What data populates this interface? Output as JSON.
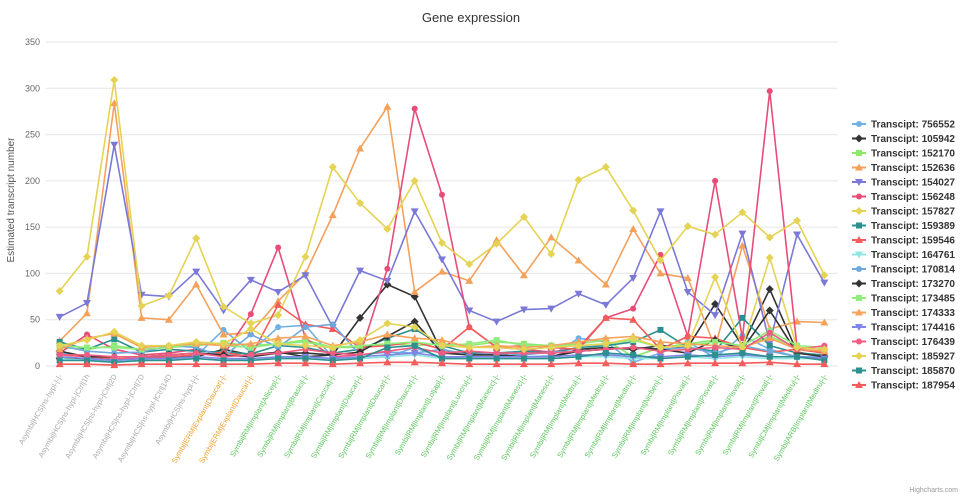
{
  "chart_data": {
    "type": "line",
    "title": "Gene expression",
    "ylabel": "Estimated transcript number",
    "xlabel": "",
    "ylim": [
      0,
      350
    ],
    "yticks": [
      0,
      50,
      100,
      150,
      200,
      250,
      300,
      350
    ],
    "grid": true,
    "legend_position": "right",
    "credit": "Highcharts.com",
    "categories": [
      "Asymbi|HCS|ns-hypl-|-|-",
      "Asymbi|HCS|ns-hypl-|Ctrl|1h",
      "Asymbi|HCS|ns-hypl-|Ctrl|2D",
      "Asymbi|HCS|ns-hypl-|Ctrl|7D",
      "Asymbi|HCS|ns-hypl-|Ctrl|14D",
      "Asymbi|HCS|ns-hypl-|-|-",
      "Symbi|ERM|Explant|Daucar|-|-",
      "Symbi|ERM|Explant|Daucar|-|-",
      "Symbi|RM|Implant|Allicep|-|-",
      "Symbi|RM|Implant|Brasici|-|-",
      "Symbi|RM|Implant|Caccat|-|-",
      "Symbi|RM|Implant|Daucar|-|-",
      "Symbi|RM|Implant|Daucar|-|-",
      "Symbi|RM|Implant|Daucar|-|-",
      "Symbi|RM|Implant|Lotjap|-|-",
      "Symbi|RM|Implant|Luncru|-|-",
      "Symbi|RM|Implant|Manesc|-|-",
      "Symbi|RM|Implant|Manesc|-|-",
      "Symbi|RM|Implant|Manesc|-|-",
      "Symbi|RM|Implant|Medtru|-|-",
      "Symbi|RM|Implant|Medtru|-|-",
      "Symbi|RM|Implant|Medtru|-|-",
      "Symbi|RM|Implant|Nicben|-|-",
      "Symbi|RM|Implant|Pisvat|-|-",
      "Symbi|RM|Implant|Pisvat|-|-",
      "Symbi|RM|Implant|Pisvat|-|-",
      "Symbi|RM|Implant|Pisvat|-|-",
      "Symbi|CM|Implant|Medtru|-|-",
      "Symbi|ARB|Implant|Medtru|-|-"
    ],
    "category_colors": [
      "#aaaaaa",
      "#aaaaaa",
      "#aaaaaa",
      "#aaaaaa",
      "#aaaaaa",
      "#aaaaaa",
      "#f0a030",
      "#f0a030",
      "#5cc85c",
      "#5cc85c",
      "#5cc85c",
      "#5cc85c",
      "#5cc85c",
      "#5cc85c",
      "#5cc85c",
      "#5cc85c",
      "#5cc85c",
      "#5cc85c",
      "#5cc85c",
      "#5cc85c",
      "#5cc85c",
      "#5cc85c",
      "#5cc85c",
      "#5cc85c",
      "#5cc85c",
      "#5cc85c",
      "#5cc85c",
      "#5cc85c",
      "#5cc85c"
    ],
    "series": [
      {
        "name": "Transcipt: 756552",
        "color": "#6fb1e4",
        "marker": "circle",
        "values": [
          14,
          10,
          7,
          10,
          10,
          11,
          39,
          15,
          42,
          44,
          9,
          8,
          10,
          20,
          9,
          10,
          10,
          10,
          11,
          30,
          26,
          4,
          14,
          26,
          9,
          33,
          18,
          10,
          10
        ]
      },
      {
        "name": "Transcipt: 105942",
        "color": "#333333",
        "marker": "diamond",
        "values": [
          8,
          8,
          6,
          8,
          10,
          10,
          18,
          12,
          15,
          10,
          12,
          52,
          88,
          75,
          15,
          14,
          12,
          10,
          10,
          18,
          20,
          18,
          22,
          20,
          67,
          22,
          83,
          15,
          10
        ]
      },
      {
        "name": "Transcipt: 152170",
        "color": "#8ee86e",
        "marker": "square",
        "values": [
          20,
          18,
          22,
          18,
          20,
          22,
          25,
          22,
          24,
          28,
          20,
          20,
          24,
          22,
          24,
          22,
          26,
          24,
          22,
          24,
          28,
          10,
          20,
          24,
          28,
          20,
          32,
          20,
          18
        ]
      },
      {
        "name": "Transcipt: 152636",
        "color": "#f4a15c",
        "marker": "triangle",
        "values": [
          27,
          57,
          284,
          52,
          50,
          88,
          34,
          36,
          70,
          100,
          163,
          235,
          280,
          80,
          102,
          92,
          136,
          98,
          139,
          114,
          88,
          148,
          100,
          95,
          20,
          130,
          40,
          48,
          47
        ]
      },
      {
        "name": "Transcipt: 154027",
        "color": "#7b79d8",
        "marker": "triangle-down",
        "values": [
          53,
          68,
          239,
          77,
          75,
          102,
          60,
          93,
          80,
          98,
          42,
          103,
          92,
          167,
          115,
          60,
          48,
          61,
          62,
          78,
          66,
          95,
          167,
          80,
          55,
          143,
          25,
          142,
          90
        ]
      },
      {
        "name": "Transcipt: 156248",
        "color": "#e84d77",
        "marker": "circle",
        "values": [
          14,
          34,
          18,
          12,
          14,
          18,
          12,
          56,
          128,
          30,
          10,
          12,
          105,
          278,
          185,
          42,
          20,
          18,
          15,
          20,
          52,
          62,
          120,
          32,
          200,
          30,
          297,
          20,
          18
        ]
      },
      {
        "name": "Transcipt: 157827",
        "color": "#e4d354",
        "marker": "diamond",
        "values": [
          81,
          118,
          309,
          65,
          76,
          138,
          64,
          46,
          55,
          118,
          215,
          176,
          148,
          200,
          133,
          110,
          132,
          161,
          121,
          201,
          215,
          168,
          114,
          151,
          142,
          166,
          139,
          157,
          98
        ]
      },
      {
        "name": "Transcipt: 159389",
        "color": "#2b908f",
        "marker": "square",
        "values": [
          26,
          18,
          29,
          15,
          18,
          16,
          15,
          13,
          22,
          20,
          14,
          18,
          30,
          40,
          22,
          14,
          14,
          16,
          14,
          20,
          22,
          26,
          39,
          20,
          16,
          52,
          22,
          14,
          12
        ]
      },
      {
        "name": "Transcipt: 159546",
        "color": "#f45b5b",
        "marker": "triangle",
        "values": [
          12,
          10,
          8,
          8,
          10,
          12,
          15,
          10,
          66,
          45,
          40,
          20,
          22,
          26,
          18,
          42,
          20,
          22,
          20,
          18,
          52,
          50,
          18,
          32,
          30,
          20,
          15,
          18,
          14
        ]
      },
      {
        "name": "Transcipt: 164761",
        "color": "#91e8e1",
        "marker": "triangle-down",
        "values": [
          8,
          6,
          5,
          6,
          8,
          8,
          6,
          8,
          8,
          10,
          8,
          8,
          10,
          12,
          8,
          8,
          8,
          8,
          8,
          10,
          10,
          8,
          8,
          10,
          8,
          10,
          8,
          8,
          8
        ]
      },
      {
        "name": "Transcipt: 170814",
        "color": "#6fa8dc",
        "marker": "circle",
        "values": [
          22,
          16,
          14,
          15,
          22,
          20,
          10,
          34,
          20,
          42,
          45,
          12,
          15,
          14,
          18,
          12,
          14,
          12,
          15,
          16,
          18,
          20,
          18,
          20,
          14,
          22,
          16,
          10,
          8
        ]
      },
      {
        "name": "Transcipt: 173270",
        "color": "#333333",
        "marker": "diamond",
        "values": [
          16,
          10,
          10,
          10,
          12,
          14,
          12,
          10,
          14,
          14,
          12,
          15,
          32,
          48,
          14,
          12,
          12,
          10,
          10,
          16,
          18,
          20,
          18,
          14,
          28,
          18,
          60,
          14,
          10
        ]
      },
      {
        "name": "Transcipt: 173485",
        "color": "#90ed7d",
        "marker": "square",
        "values": [
          22,
          20,
          20,
          18,
          20,
          24,
          22,
          20,
          24,
          26,
          20,
          22,
          24,
          26,
          22,
          24,
          28,
          22,
          22,
          22,
          24,
          28,
          20,
          22,
          26,
          22,
          38,
          22,
          20
        ]
      },
      {
        "name": "Transcipt: 174333",
        "color": "#f7a35c",
        "marker": "triangle",
        "values": [
          18,
          30,
          35,
          20,
          22,
          24,
          22,
          24,
          30,
          32,
          22,
          26,
          34,
          30,
          28,
          20,
          22,
          20,
          22,
          26,
          30,
          32,
          26,
          24,
          22,
          20,
          30,
          18,
          16
        ]
      },
      {
        "name": "Transcipt: 174416",
        "color": "#8085e9",
        "marker": "triangle-down",
        "values": [
          10,
          8,
          6,
          8,
          8,
          10,
          8,
          8,
          10,
          10,
          8,
          10,
          12,
          14,
          10,
          10,
          10,
          10,
          10,
          12,
          12,
          10,
          10,
          12,
          10,
          12,
          10,
          10,
          8
        ]
      },
      {
        "name": "Transcipt: 176439",
        "color": "#f15c80",
        "marker": "circle",
        "values": [
          12,
          12,
          10,
          10,
          12,
          14,
          10,
          12,
          14,
          18,
          14,
          12,
          16,
          20,
          14,
          16,
          14,
          14,
          14,
          16,
          18,
          20,
          16,
          18,
          20,
          18,
          36,
          18,
          22
        ]
      },
      {
        "name": "Transcipt: 185927",
        "color": "#e4d354",
        "marker": "diamond",
        "values": [
          22,
          28,
          37,
          22,
          22,
          26,
          24,
          40,
          24,
          22,
          20,
          28,
          46,
          42,
          22,
          20,
          20,
          18,
          20,
          22,
          24,
          30,
          20,
          22,
          96,
          20,
          117,
          20,
          18
        ]
      },
      {
        "name": "Transcipt: 185870",
        "color": "#2b908f",
        "marker": "square",
        "values": [
          6,
          6,
          4,
          6,
          6,
          8,
          6,
          6,
          8,
          8,
          6,
          8,
          20,
          22,
          8,
          8,
          8,
          8,
          8,
          10,
          14,
          12,
          8,
          10,
          12,
          14,
          10,
          10,
          6
        ]
      },
      {
        "name": "Transcipt: 187954",
        "color": "#f45b5b",
        "marker": "triangle",
        "values": [
          2,
          2,
          1,
          2,
          2,
          2,
          2,
          2,
          3,
          3,
          2,
          3,
          4,
          4,
          3,
          2,
          2,
          2,
          2,
          3,
          3,
          2,
          2,
          3,
          3,
          3,
          4,
          2,
          2
        ]
      }
    ]
  }
}
